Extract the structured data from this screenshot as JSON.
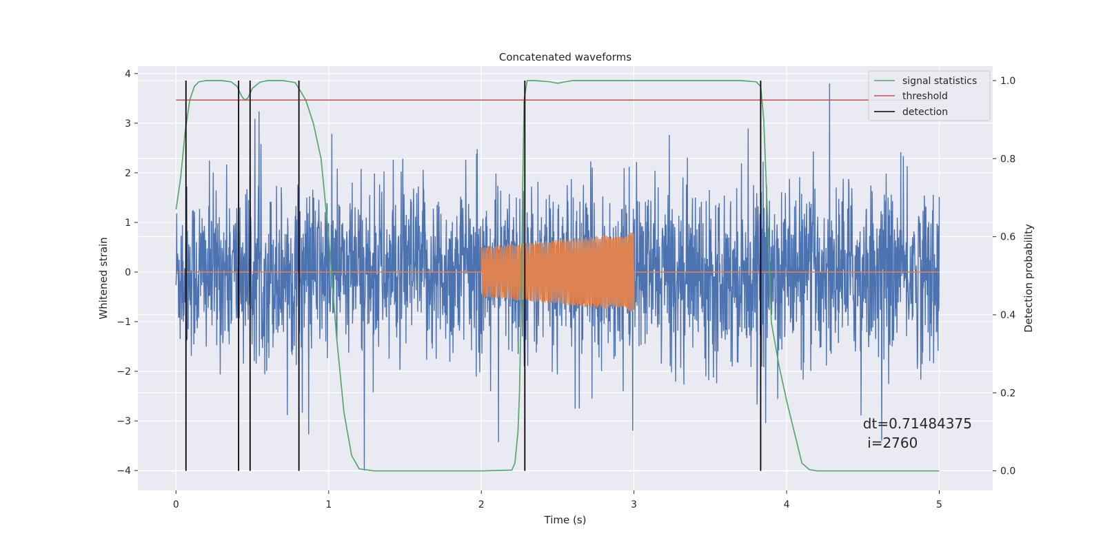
{
  "chart_data": {
    "type": "line",
    "title": "Concatenated waveforms",
    "xlabel": "Time (s)",
    "ylabel": "Whitened strain",
    "y2label": "Detection probability",
    "xlim": [
      -0.25,
      5.35
    ],
    "ylim": [
      -4.4,
      4.15
    ],
    "y2lim": [
      -0.05,
      1.037
    ],
    "xticks": [
      0,
      1,
      2,
      3,
      4,
      5
    ],
    "yticks": [
      -4,
      -3,
      -2,
      -1,
      0,
      1,
      2,
      3,
      4
    ],
    "y2ticks": [
      0.0,
      0.2,
      0.4,
      0.6,
      0.8,
      1.0
    ],
    "y2ticklabels": [
      "0.0",
      "0.2",
      "0.4",
      "0.6",
      "0.8",
      "1.0"
    ],
    "grid": true,
    "legend_position": "top-right",
    "colors": {
      "strain": "#4c72b0",
      "injection": "#dd8452",
      "statistic": "#55a868",
      "threshold": "#c44e52",
      "detection": "#000000",
      "background": "#eaeaf2",
      "grid": "#ffffff"
    },
    "series": [
      {
        "name": "",
        "axis": "left",
        "description_key": "strain",
        "x_range": [
          0,
          5
        ],
        "amplitude_std": 0.85,
        "peak_range": [
          -4,
          3.8
        ]
      },
      {
        "name": "",
        "axis": "left",
        "description_key": "injection",
        "x_range": [
          0,
          5
        ],
        "nonzero_range": [
          2.0,
          3.0
        ],
        "amplitude_start": 0.5,
        "amplitude_end": 0.8
      },
      {
        "name": "signal statistics",
        "axis": "right",
        "x": [
          0,
          0.03,
          0.06,
          0.09,
          0.12,
          0.15,
          0.2,
          0.3,
          0.36,
          0.4,
          0.43,
          0.45,
          0.47,
          0.5,
          0.55,
          0.6,
          0.7,
          0.78,
          0.82,
          0.85,
          0.9,
          0.95,
          1.0,
          1.05,
          1.1,
          1.15,
          1.2,
          1.3,
          2.0,
          2.2,
          2.22,
          2.24,
          2.25,
          2.26,
          2.27,
          2.28,
          2.3,
          2.35,
          2.45,
          2.5,
          2.55,
          2.6,
          3.7,
          3.8,
          3.83,
          3.85,
          3.87,
          3.9,
          3.95,
          4.0,
          4.05,
          4.1,
          4.15,
          4.2,
          5.0
        ],
        "y": [
          0.67,
          0.75,
          0.87,
          0.95,
          0.985,
          0.997,
          1.0,
          1.0,
          0.997,
          0.985,
          0.96,
          0.95,
          0.955,
          0.98,
          0.996,
          1.0,
          1.0,
          0.995,
          0.97,
          0.95,
          0.89,
          0.8,
          0.6,
          0.35,
          0.15,
          0.04,
          0.005,
          0.0,
          0.0,
          0.002,
          0.02,
          0.1,
          0.2,
          0.4,
          0.7,
          0.95,
          1.0,
          1.0,
          0.997,
          0.993,
          0.997,
          1.0,
          1.0,
          0.997,
          0.985,
          0.9,
          0.7,
          0.38,
          0.27,
          0.18,
          0.1,
          0.02,
          0.003,
          0.0,
          0.0
        ]
      },
      {
        "name": "threshold",
        "axis": "right",
        "x": [
          0,
          5.02
        ],
        "y": [
          0.95,
          0.95
        ]
      },
      {
        "name": "detection",
        "axis": "right",
        "vlines": [
          0.065,
          0.41,
          0.485,
          0.805,
          2.285,
          3.83
        ],
        "ymin": 0.0,
        "ymax": 1.0
      }
    ],
    "annotation": {
      "line1": "dt=0.71484375",
      "line2": " i=2760",
      "x": 4.5,
      "y": 0.095
    }
  }
}
